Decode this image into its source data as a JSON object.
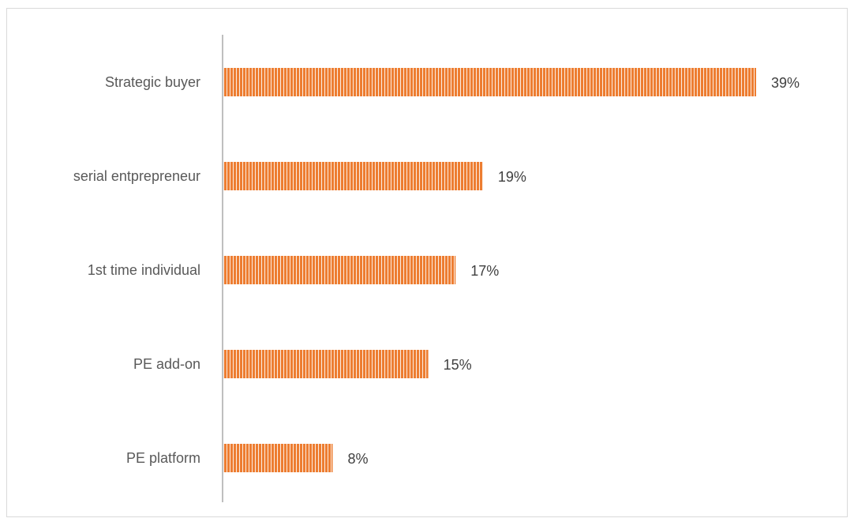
{
  "chart_data": {
    "type": "bar",
    "orientation": "horizontal",
    "categories": [
      "Strategic buyer",
      "serial entprepreneur",
      "1st time individual",
      "PE add-on",
      "PE platform"
    ],
    "values": [
      39,
      19,
      17,
      15,
      8
    ],
    "value_labels": [
      "39%",
      "19%",
      "17%",
      "15%",
      "8%"
    ],
    "unit": "%",
    "title": "",
    "xlabel": "",
    "ylabel": "",
    "xlim": [
      0,
      45
    ],
    "grid": false,
    "legend": "none",
    "colors": {
      "bar": "#ed7d31",
      "bar_stripe": "#ffffff",
      "axis": "#bfbfbf",
      "frame": "#d9d9d9"
    }
  }
}
